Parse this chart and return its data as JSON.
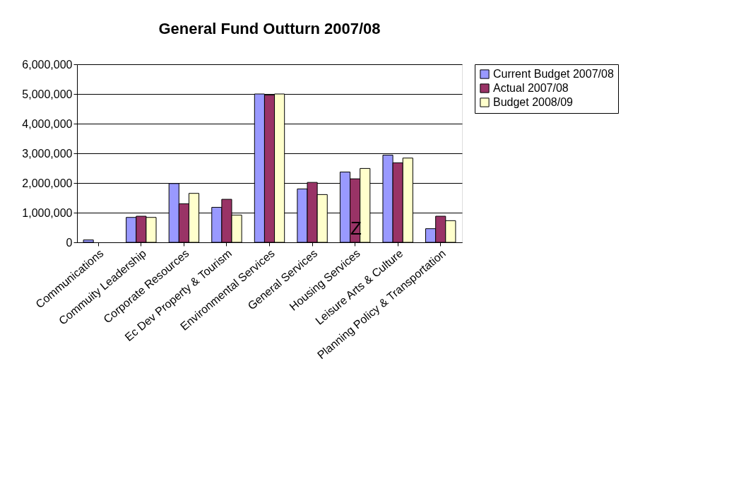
{
  "chart_data": {
    "type": "bar",
    "title": "General Fund Outturn 2007/08",
    "categories": [
      "Communications",
      "Commuity Leadership",
      "Corporate Resources",
      "Ec Dev Property & Tourism",
      "Environmental Services",
      "General Services",
      "Housing Services",
      "Leisure Arts & Culture",
      "Planning Policy & Transportation"
    ],
    "series": [
      {
        "name": "Current Budget 2007/08",
        "color": "#9999ff",
        "values": [
          80000,
          840000,
          1980000,
          1180000,
          5000000,
          1800000,
          2370000,
          2940000,
          460000
        ]
      },
      {
        "name": "Actual 2007/08",
        "color": "#993366",
        "values": [
          null,
          880000,
          1300000,
          1450000,
          4960000,
          2020000,
          2140000,
          2680000,
          880000
        ]
      },
      {
        "name": "Budget 2008/09",
        "color": "#ffffcc",
        "values": [
          null,
          840000,
          1650000,
          920000,
          5000000,
          1610000,
          2490000,
          2840000,
          730000
        ]
      }
    ],
    "ylim": [
      0,
      6000000
    ],
    "yticks": [
      {
        "value": 0,
        "label": "0"
      },
      {
        "value": 1000000,
        "label": "1,000,000"
      },
      {
        "value": 2000000,
        "label": "2,000,000"
      },
      {
        "value": 3000000,
        "label": "3,000,000"
      },
      {
        "value": 4000000,
        "label": "4,000,000"
      },
      {
        "value": 5000000,
        "label": "5,000,000"
      },
      {
        "value": 6000000,
        "label": "6,000,000"
      }
    ],
    "grid": "y",
    "legend": "right",
    "annotations": [
      "Z"
    ]
  }
}
